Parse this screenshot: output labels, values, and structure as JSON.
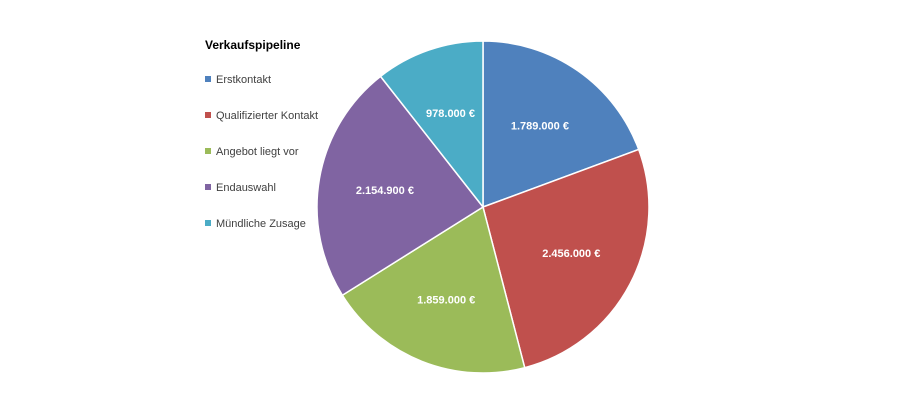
{
  "chart_data": {
    "type": "pie",
    "title": "Verkaufspipeline",
    "legend_position": "left",
    "start_angle": "top",
    "direction": "clockwise",
    "slices": [
      {
        "label": "Erstkontakt",
        "value": 1789000,
        "value_label": "1.789.000 €",
        "color": "#4F81BD"
      },
      {
        "label": "Qualifizierter Kontakt",
        "value": 2456000,
        "value_label": "2.456.000 €",
        "color": "#C0504D"
      },
      {
        "label": "Angebot liegt vor",
        "value": 1859000,
        "value_label": "1.859.000 €",
        "color": "#9BBB59"
      },
      {
        "label": "Endauswahl",
        "value": 2154900,
        "value_label": "2.154.900 €",
        "color": "#8064A2"
      },
      {
        "label": "Mündliche Zusage",
        "value": 978000,
        "value_label": "978.000 €",
        "color": "#4BACC6"
      }
    ]
  }
}
